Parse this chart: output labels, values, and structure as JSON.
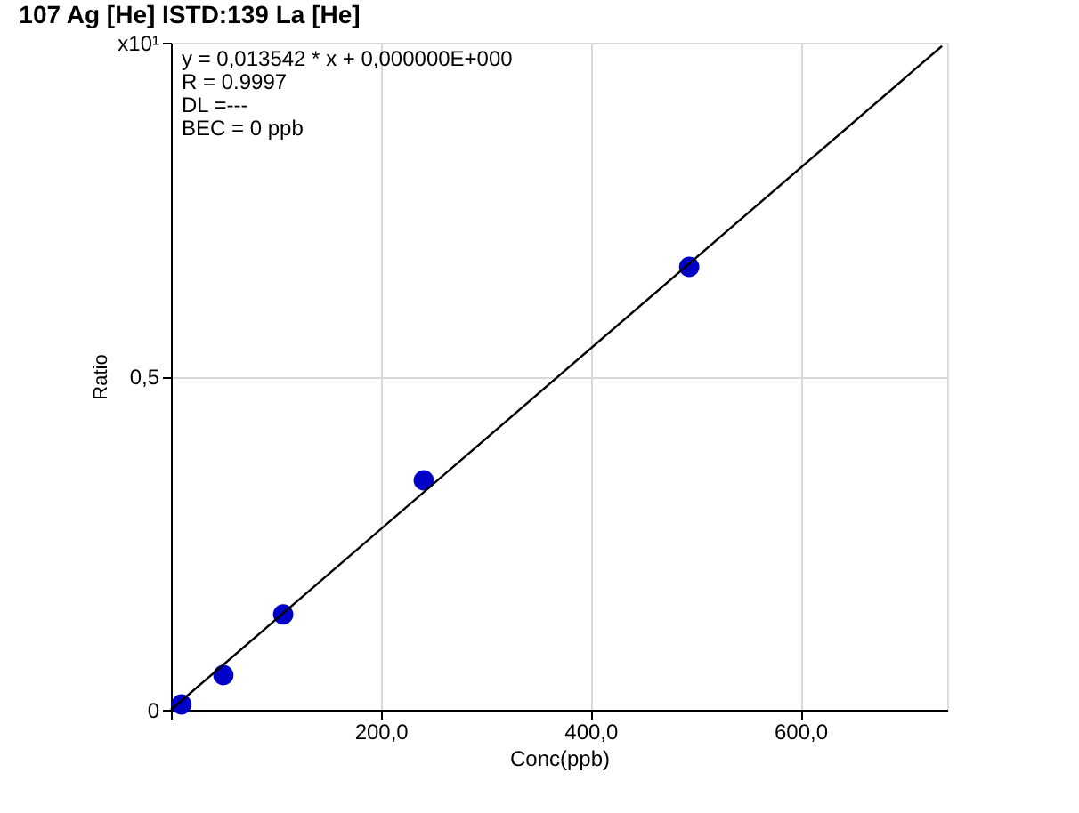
{
  "chart_data": {
    "type": "scatter",
    "title": "107 Ag [He] ISTD:139 La [He]",
    "xlabel": "Conc(ppb)",
    "ylabel": "Ratio",
    "x": [
      10,
      50,
      107,
      241,
      494
    ],
    "series": [
      {
        "color": "#0000c8",
        "marker": "circle",
        "values": [
          0.008,
          0.052,
          0.143,
          0.344,
          0.664
        ]
      },
      {
        "type": "line",
        "color": "#000000",
        "line_style": "solid",
        "x": [
          0,
          735
        ],
        "values": [
          0,
          0.995
        ]
      }
    ],
    "xlim": [
      0,
      740
    ],
    "ylim": [
      0,
      1.0
    ],
    "xticks": [
      {
        "value": 0,
        "label": null
      },
      {
        "value": 200,
        "label": "200,0"
      },
      {
        "value": 400,
        "label": "400,0"
      },
      {
        "value": 600,
        "label": "600,0"
      }
    ],
    "yticks": [
      0,
      {
        "value": 0.5,
        "label": "0,5"
      },
      {
        "value": 1.0,
        "label": "x10¹"
      }
    ],
    "grid": true,
    "annotations": [
      "y = 0,013542 * x  + 0,000000E+000",
      "R =  0.9997",
      "DL =---",
      "BEC = 0 ppb"
    ]
  }
}
